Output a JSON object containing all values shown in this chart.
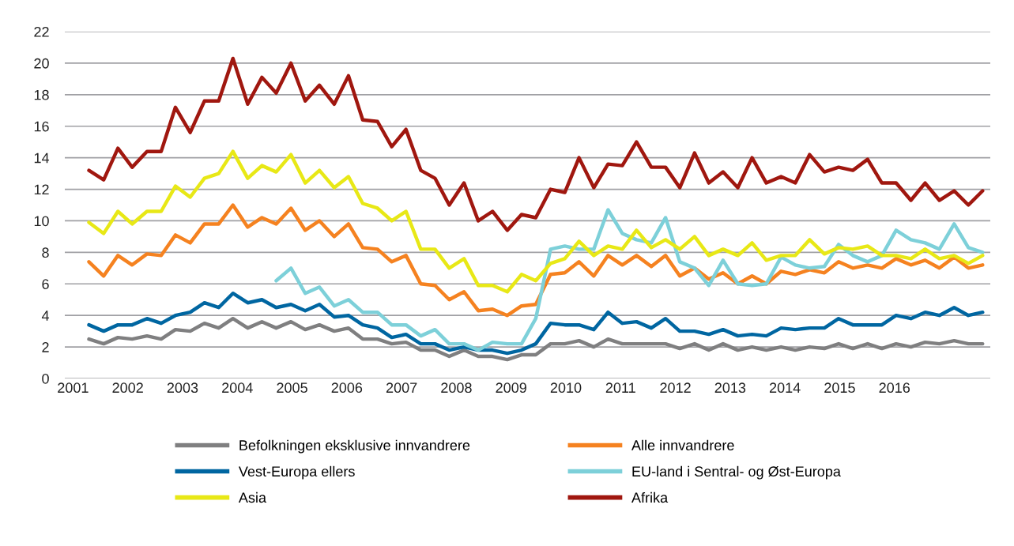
{
  "chart_data": {
    "type": "line",
    "x": [
      2001.29,
      2001.56,
      2001.82,
      2002.08,
      2002.35,
      2002.61,
      2002.87,
      2003.14,
      2003.4,
      2003.66,
      2003.92,
      2004.19,
      2004.45,
      2004.71,
      2004.98,
      2005.24,
      2005.5,
      2005.77,
      2006.03,
      2006.29,
      2006.56,
      2006.82,
      2007.08,
      2007.35,
      2007.61,
      2007.87,
      2008.14,
      2008.4,
      2008.66,
      2008.93,
      2009.19,
      2009.45,
      2009.72,
      2009.98,
      2010.24,
      2010.51,
      2010.77,
      2011.03,
      2011.29,
      2011.56,
      2011.82,
      2012.08,
      2012.35,
      2012.61,
      2012.87,
      2013.14,
      2013.4,
      2013.66,
      2013.93,
      2014.19,
      2014.45,
      2014.72,
      2014.98,
      2015.24,
      2015.51,
      2015.77,
      2016.03,
      2016.3,
      2016.56,
      2016.82,
      2017.09,
      2017.35,
      2017.61
    ],
    "series": [
      {
        "name": "Befolkningen eksklusive innvandrere",
        "color": "#7f7f80",
        "values": [
          2.5,
          2.2,
          2.6,
          2.5,
          2.7,
          2.5,
          3.1,
          3.0,
          3.5,
          3.2,
          3.8,
          3.2,
          3.6,
          3.2,
          3.6,
          3.1,
          3.4,
          3.0,
          3.2,
          2.5,
          2.5,
          2.2,
          2.3,
          1.8,
          1.8,
          1.4,
          1.8,
          1.4,
          1.4,
          1.2,
          1.5,
          1.5,
          2.2,
          2.2,
          2.4,
          2.0,
          2.5,
          2.2,
          2.2,
          2.2,
          2.2,
          1.9,
          2.2,
          1.8,
          2.2,
          1.8,
          2.0,
          1.8,
          2.0,
          1.8,
          2.0,
          1.9,
          2.2,
          1.9,
          2.2,
          1.9,
          2.2,
          2.0,
          2.3,
          2.2,
          2.4,
          2.2,
          2.2
        ]
      },
      {
        "name": "Alle innvandrere",
        "color": "#f58220",
        "values": [
          7.4,
          6.5,
          7.8,
          7.2,
          7.9,
          7.8,
          9.1,
          8.6,
          9.8,
          9.8,
          11.0,
          9.6,
          10.2,
          9.8,
          10.8,
          9.4,
          10.0,
          9.0,
          9.8,
          8.3,
          8.2,
          7.4,
          7.8,
          6.0,
          5.9,
          5.0,
          5.5,
          4.3,
          4.4,
          4.0,
          4.6,
          4.7,
          6.6,
          6.7,
          7.4,
          6.5,
          7.8,
          7.2,
          7.8,
          7.1,
          7.8,
          6.5,
          7.0,
          6.3,
          6.7,
          6.0,
          6.5,
          6.0,
          6.8,
          6.6,
          6.9,
          6.7,
          7.4,
          7.0,
          7.2,
          7.0,
          7.6,
          7.2,
          7.5,
          7.0,
          7.7,
          7.0,
          7.2
        ]
      },
      {
        "name": "Vest-Europa ellers",
        "color": "#0066a1",
        "values": [
          3.4,
          3.0,
          3.4,
          3.4,
          3.8,
          3.5,
          4.0,
          4.2,
          4.8,
          4.5,
          5.4,
          4.8,
          5.0,
          4.5,
          4.7,
          4.3,
          4.7,
          3.9,
          4.0,
          3.4,
          3.2,
          2.6,
          2.8,
          2.2,
          2.2,
          1.8,
          2.0,
          1.8,
          1.8,
          1.6,
          1.8,
          2.2,
          3.5,
          3.4,
          3.4,
          3.1,
          4.2,
          3.5,
          3.6,
          3.2,
          3.8,
          3.0,
          3.0,
          2.8,
          3.1,
          2.7,
          2.8,
          2.7,
          3.2,
          3.1,
          3.2,
          3.2,
          3.8,
          3.4,
          3.4,
          3.4,
          4.0,
          3.8,
          4.2,
          4.0,
          4.5,
          4.0,
          4.2
        ]
      },
      {
        "name": "EU-land i Sentral- og Øst-Europa",
        "color": "#7dd0d9",
        "values": [
          null,
          null,
          null,
          null,
          null,
          null,
          null,
          null,
          null,
          null,
          null,
          null,
          null,
          6.2,
          7.0,
          5.4,
          5.8,
          4.6,
          5.0,
          4.2,
          4.2,
          3.4,
          3.4,
          2.7,
          3.1,
          2.2,
          2.2,
          1.8,
          2.3,
          2.2,
          2.2,
          3.8,
          8.2,
          8.4,
          8.2,
          8.2,
          10.7,
          9.2,
          8.8,
          8.6,
          10.2,
          7.4,
          7.0,
          5.9,
          7.5,
          6.0,
          5.9,
          6.0,
          7.7,
          7.2,
          7.0,
          7.1,
          8.5,
          7.8,
          7.4,
          7.8,
          9.4,
          8.8,
          8.6,
          8.2,
          9.8,
          8.3,
          8.0
        ]
      },
      {
        "name": "Asia",
        "color": "#e8e816",
        "values": [
          9.9,
          9.2,
          10.6,
          9.8,
          10.6,
          10.6,
          12.2,
          11.5,
          12.7,
          13.0,
          14.4,
          12.7,
          13.5,
          13.1,
          14.2,
          12.4,
          13.2,
          12.1,
          12.8,
          11.1,
          10.8,
          10.0,
          10.6,
          8.2,
          8.2,
          7.0,
          7.6,
          5.9,
          5.9,
          5.5,
          6.6,
          6.2,
          7.3,
          7.6,
          8.7,
          7.8,
          8.4,
          8.2,
          9.4,
          8.3,
          8.8,
          8.2,
          9.0,
          7.8,
          8.2,
          7.8,
          8.6,
          7.5,
          7.8,
          7.8,
          8.8,
          7.9,
          8.3,
          8.2,
          8.4,
          7.8,
          7.8,
          7.6,
          8.2,
          7.6,
          7.8,
          7.3,
          7.8
        ]
      },
      {
        "name": "Afrika",
        "color": "#a0170f",
        "values": [
          13.2,
          12.6,
          14.6,
          13.4,
          14.4,
          14.4,
          17.2,
          15.6,
          17.6,
          17.6,
          20.3,
          17.4,
          19.1,
          18.1,
          20.0,
          17.6,
          18.6,
          17.4,
          19.2,
          16.4,
          16.3,
          14.7,
          15.8,
          13.2,
          12.7,
          11.0,
          12.4,
          10.0,
          10.6,
          9.4,
          10.4,
          10.2,
          12.0,
          11.8,
          14.0,
          12.1,
          13.6,
          13.5,
          15.0,
          13.4,
          13.4,
          12.1,
          14.3,
          12.4,
          13.1,
          12.1,
          14.0,
          12.4,
          12.8,
          12.4,
          14.2,
          13.1,
          13.4,
          13.2,
          13.9,
          12.4,
          12.4,
          11.3,
          12.4,
          11.3,
          11.9,
          11.0,
          11.9
        ]
      }
    ],
    "xlim": [
      2000.85,
      2017.75
    ],
    "xticks": [
      2001,
      2002,
      2003,
      2004,
      2005,
      2006,
      2007,
      2008,
      2009,
      2010,
      2011,
      2012,
      2013,
      2014,
      2015,
      2016
    ],
    "ylim": [
      0,
      22
    ],
    "yticks": [
      0,
      2,
      4,
      6,
      8,
      10,
      12,
      14,
      16,
      18,
      20,
      22
    ],
    "grid": "y",
    "legend": "bottom",
    "marker": "none",
    "line_style": "solid"
  }
}
